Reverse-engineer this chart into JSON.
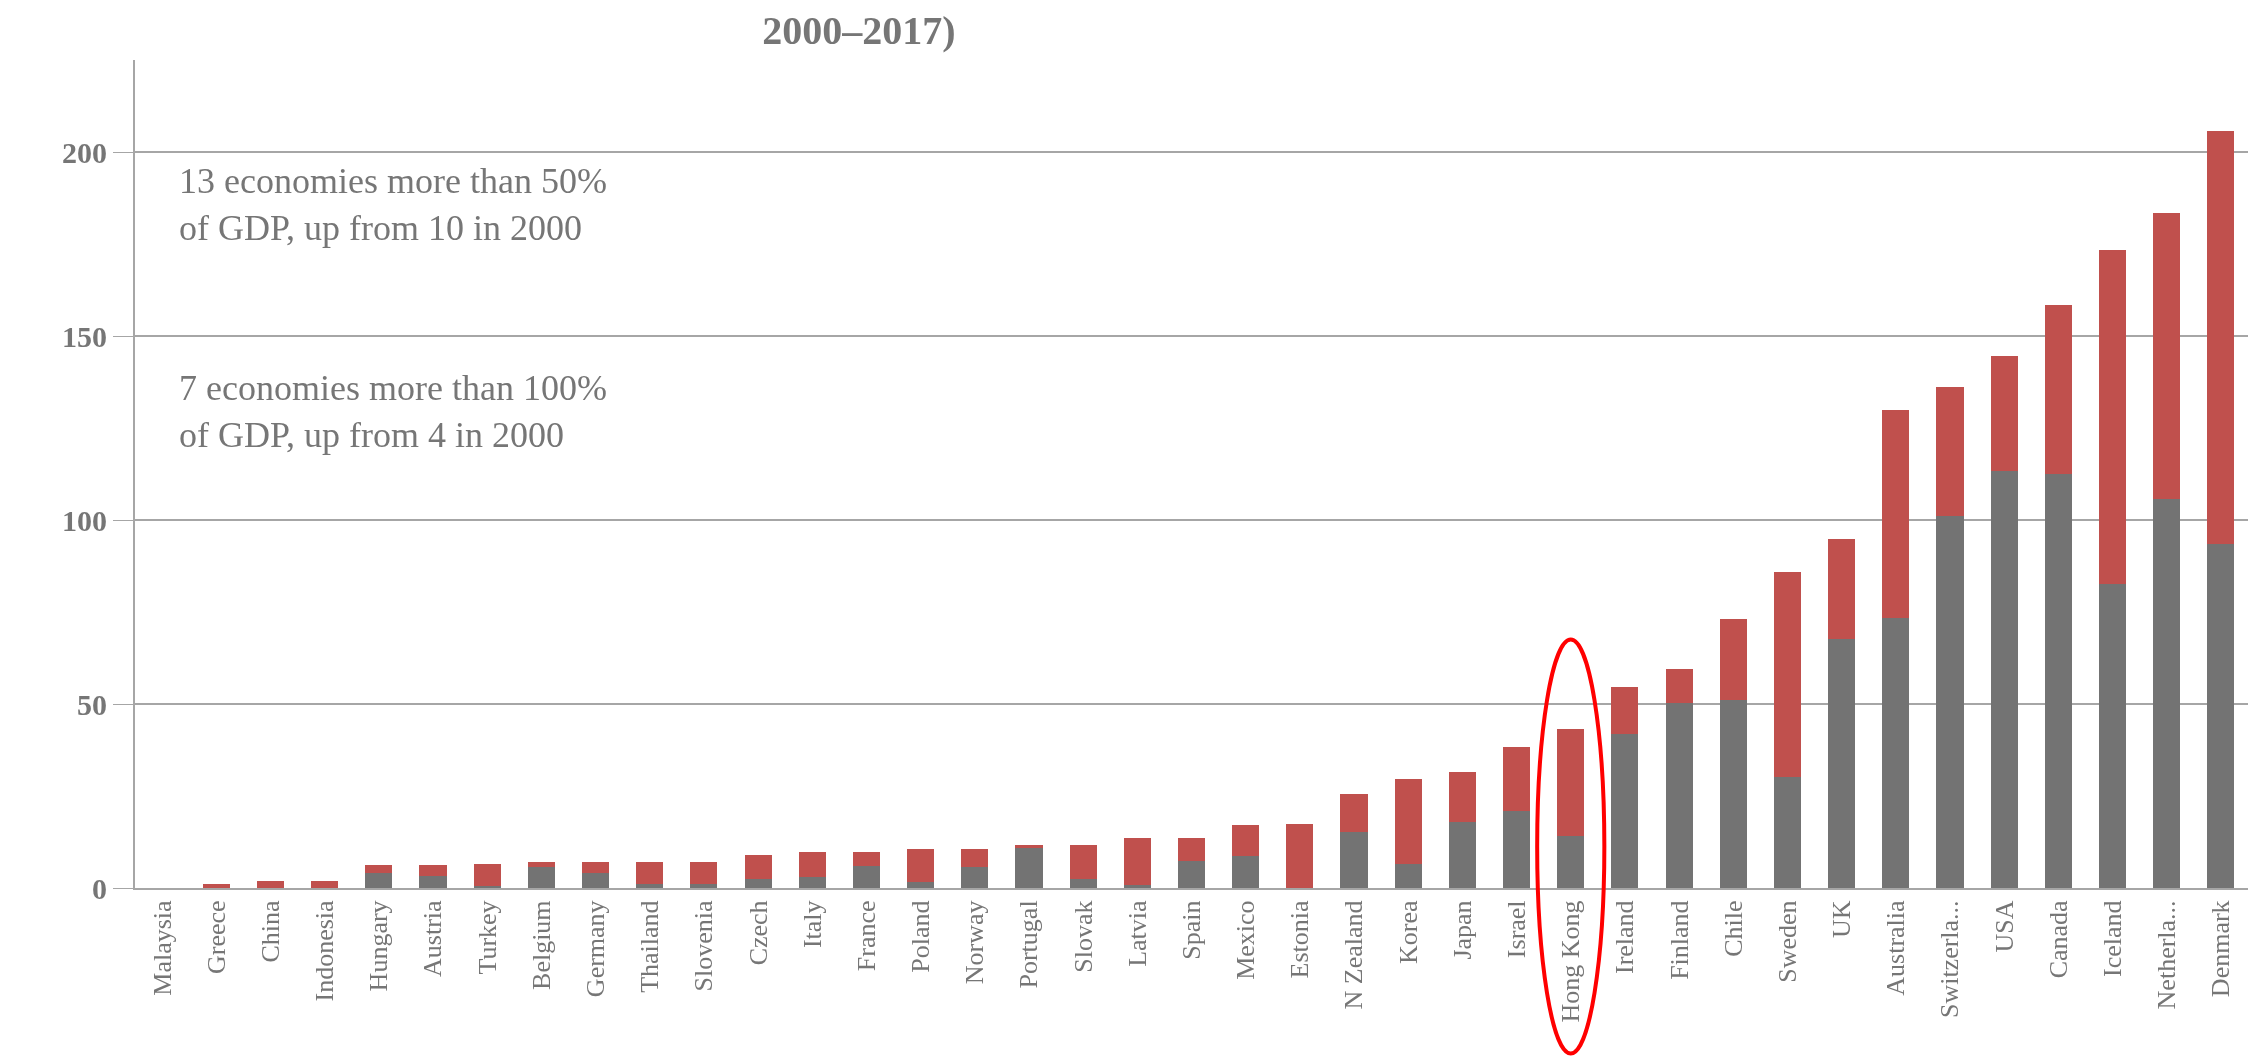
{
  "chart_data": {
    "type": "bar",
    "title": "2000–2017)",
    "stacked": true,
    "categories": [
      "Malaysia",
      "Greece",
      "China",
      "Indonesia",
      "Hungary",
      "Austria",
      "Turkey",
      "Belgium",
      "Germany",
      "Thailand",
      "Slovenia",
      "Czech",
      "Italy",
      "France",
      "Poland",
      "Norway",
      "Portugal",
      "Slovak",
      "Latvia",
      "Spain",
      "Mexico",
      "Estonia",
      "N Zealand",
      "Korea",
      "Japan",
      "Israel",
      "Hong Kong",
      "Ireland",
      "Finland",
      "Chile",
      "Sweden",
      "UK",
      "Australia",
      "Switzerla...",
      "USA",
      "Canada",
      "Iceland",
      "Netherla...",
      "Denmark"
    ],
    "series": [
      {
        "color": "#737373",
        "values": [
          0,
          0,
          0,
          0,
          4,
          3.3,
          0.5,
          5.8,
          4,
          1,
          1,
          2.5,
          3,
          6,
          1.5,
          5.8,
          11,
          2.5,
          0.7,
          7.3,
          8.6,
          0,
          15.2,
          6.6,
          18,
          20.8,
          14,
          41.8,
          50.2,
          51.1,
          30.3,
          67.6,
          73.4,
          101.1,
          113.3,
          112.5,
          82.6,
          105.8,
          93.4
        ]
      },
      {
        "color": "#c0504d",
        "values": [
          0,
          1,
          2,
          2,
          2.2,
          2.9,
          6,
          1.2,
          3,
          6,
          6,
          6.5,
          6.8,
          3.8,
          9,
          4.7,
          0.6,
          9.3,
          12.8,
          6.4,
          8.6,
          17.4,
          10.3,
          23,
          13.5,
          17.4,
          29.3,
          12.9,
          9.2,
          22.1,
          55.7,
          27.3,
          56.5,
          35.1,
          31.2,
          45.9,
          90.8,
          77.7,
          112.2
        ]
      }
    ],
    "ylim": [
      0,
      225
    ],
    "yticks": [
      0,
      50,
      100,
      150,
      200
    ],
    "grid": "y",
    "annotations": [
      "13 economies more than 50%\nof GDP, up from 10 in 2000",
      "7 economies more than 100%\nof GDP, up from 4 in 2000"
    ]
  }
}
